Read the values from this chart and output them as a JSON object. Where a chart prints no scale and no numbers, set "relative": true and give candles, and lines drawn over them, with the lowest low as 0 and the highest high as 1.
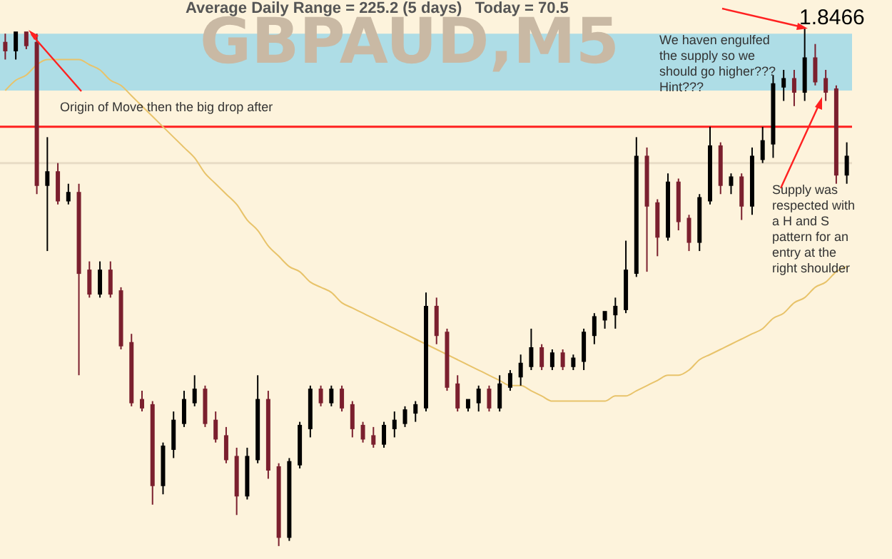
{
  "chart_data": {
    "type": "candlestick",
    "title": "Average Daily Range = 225.2 (5 days)   Today = 70.5",
    "subtitle": "GBPAUD,M5",
    "relative": true,
    "categories": [
      null,
      null,
      null,
      null,
      null,
      null,
      null,
      null,
      null,
      null,
      null,
      null,
      null,
      null,
      null,
      null,
      null,
      null,
      null,
      null,
      null,
      null,
      null,
      null,
      null,
      null,
      null,
      null,
      null,
      null,
      null,
      null,
      null,
      null,
      null,
      null,
      null,
      null,
      null,
      null,
      null,
      null,
      null,
      null,
      null,
      null,
      null,
      null,
      null,
      null,
      null,
      null,
      null,
      null,
      null,
      null,
      null,
      null,
      null,
      null,
      null,
      null,
      null,
      null,
      null,
      null,
      null,
      null,
      null,
      null,
      null,
      null,
      null,
      null,
      null,
      null,
      null,
      null,
      null,
      null,
      null
    ],
    "ohlc": [
      [
        0.97,
        0.99,
        0.94,
        0.96
      ],
      [
        0.96,
        0.99,
        0.94,
        0.99
      ],
      [
        0.99,
        0.99,
        0.96,
        0.97
      ],
      [
        0.97,
        0.99,
        0.68,
        0.7
      ],
      [
        0.7,
        0.79,
        0.57,
        0.72
      ],
      [
        0.72,
        0.74,
        0.66,
        0.67
      ],
      [
        0.67,
        0.7,
        0.66,
        0.68
      ],
      [
        0.68,
        0.7,
        0.33,
        0.53
      ],
      [
        0.53,
        0.55,
        0.48,
        0.49
      ],
      [
        0.49,
        0.55,
        0.48,
        0.53
      ],
      [
        0.53,
        0.55,
        0.48,
        0.49
      ],
      [
        0.49,
        0.5,
        0.38,
        0.39
      ],
      [
        0.39,
        0.41,
        0.27,
        0.28
      ],
      [
        0.28,
        0.3,
        0.26,
        0.27
      ],
      [
        0.27,
        0.28,
        0.08,
        0.12
      ],
      [
        0.12,
        0.2,
        0.1,
        0.19
      ],
      [
        0.19,
        0.26,
        0.17,
        0.24
      ],
      [
        0.24,
        0.3,
        0.23,
        0.28
      ],
      [
        0.28,
        0.33,
        0.27,
        0.3
      ],
      [
        0.3,
        0.31,
        0.23,
        0.24
      ],
      [
        0.24,
        0.26,
        0.2,
        0.21
      ],
      [
        0.21,
        0.23,
        0.16,
        0.17
      ],
      [
        0.17,
        0.19,
        0.06,
        0.1
      ],
      [
        0.1,
        0.19,
        0.09,
        0.17
      ],
      [
        0.17,
        0.33,
        0.16,
        0.28
      ],
      [
        0.28,
        0.3,
        0.13,
        0.15
      ],
      [
        0.15,
        0.16,
        0,
        0.02
      ],
      [
        0.02,
        0.17,
        0.01,
        0.16
      ],
      [
        0.16,
        0.24,
        0.15,
        0.23
      ],
      [
        0.23,
        0.31,
        0.21,
        0.3
      ],
      [
        0.3,
        0.31,
        0.27,
        0.28
      ],
      [
        0.28,
        0.31,
        0.27,
        0.3
      ],
      [
        0.3,
        0.31,
        0.26,
        0.27
      ],
      [
        0.27,
        0.28,
        0.21,
        0.23
      ],
      [
        0.23,
        0.24,
        0.2,
        0.21
      ],
      [
        0.21,
        0.23,
        0.19,
        0.2
      ],
      [
        0.2,
        0.24,
        0.19,
        0.23
      ],
      [
        0.23,
        0.26,
        0.21,
        0.24
      ],
      [
        0.24,
        0.27,
        0.23,
        0.26
      ],
      [
        0.26,
        0.28,
        0.24,
        0.27
      ],
      [
        0.27,
        0.49,
        0.26,
        0.46
      ],
      [
        0.46,
        0.48,
        0.39,
        0.41
      ],
      [
        0.41,
        0.42,
        0.3,
        0.31
      ],
      [
        0.31,
        0.33,
        0.26,
        0.27
      ],
      [
        0.27,
        0.28,
        0.26,
        0.28
      ],
      [
        0.28,
        0.31,
        0.26,
        0.3
      ],
      [
        0.3,
        0.31,
        0.26,
        0.27
      ],
      [
        0.27,
        0.33,
        0.26,
        0.31
      ],
      [
        0.31,
        0.34,
        0.3,
        0.33
      ],
      [
        0.33,
        0.37,
        0.31,
        0.35
      ],
      [
        0.35,
        0.42,
        0.34,
        0.38
      ],
      [
        0.38,
        0.39,
        0.34,
        0.35
      ],
      [
        0.35,
        0.38,
        0.34,
        0.37
      ],
      [
        0.37,
        0.38,
        0.34,
        0.35
      ],
      [
        0.35,
        0.37,
        0.34,
        0.36
      ],
      [
        0.36,
        0.42,
        0.34,
        0.41
      ],
      [
        0.41,
        0.45,
        0.39,
        0.44
      ],
      [
        0.44,
        0.45,
        0.42,
        0.45
      ],
      [
        0.45,
        0.48,
        0.42,
        0.46
      ],
      [
        0.46,
        0.59,
        0.45,
        0.53
      ],
      [
        0.53,
        0.79,
        0.52,
        0.75
      ],
      [
        0.75,
        0.77,
        0.53,
        0.66
      ],
      [
        0.66,
        0.67,
        0.56,
        0.6
      ],
      [
        0.6,
        0.72,
        0.59,
        0.7
      ],
      [
        0.7,
        0.71,
        0.61,
        0.63
      ],
      [
        0.63,
        0.64,
        0.57,
        0.59
      ],
      [
        0.59,
        0.68,
        0.57,
        0.67
      ],
      [
        0.67,
        0.81,
        0.66,
        0.77
      ],
      [
        0.77,
        0.78,
        0.68,
        0.7
      ],
      [
        0.7,
        0.72,
        0.68,
        0.71
      ],
      [
        0.71,
        0.72,
        0.63,
        0.66
      ],
      [
        0.66,
        0.77,
        0.64,
        0.75
      ],
      [
        0.75,
        0.81,
        0.74,
        0.78
      ],
      [
        0.78,
        0.91,
        0.75,
        0.89
      ],
      [
        0.89,
        0.92,
        0.86,
        0.9
      ],
      [
        0.9,
        0.92,
        0.85,
        0.88
      ],
      [
        0.88,
        1,
        0.86,
        0.94
      ],
      [
        0.94,
        0.97,
        0.89,
        0.9
      ],
      [
        0.9,
        0.92,
        0.86,
        0.88
      ],
      [
        0.88,
        0.89,
        0.7,
        0.72
      ],
      [
        0.72,
        0.78,
        0.7,
        0.75
      ]
    ],
    "colors": [
      "#7b1f2e",
      "#000000",
      "#7b1f2e",
      "#7b1f2e",
      "#000000",
      "#7b1f2e",
      "#000000",
      "#7b1f2e",
      "#7b1f2e",
      "#000000",
      "#7b1f2e",
      "#7b1f2e",
      "#7b1f2e",
      "#7b1f2e",
      "#7b1f2e",
      "#000000",
      "#000000",
      "#000000",
      "#000000",
      "#7b1f2e",
      "#7b1f2e",
      "#7b1f2e",
      "#7b1f2e",
      "#000000",
      "#000000",
      "#7b1f2e",
      "#7b1f2e",
      "#000000",
      "#000000",
      "#000000",
      "#7b1f2e",
      "#000000",
      "#7b1f2e",
      "#7b1f2e",
      "#7b1f2e",
      "#7b1f2e",
      "#000000",
      "#000000",
      "#000000",
      "#000000",
      "#000000",
      "#7b1f2e",
      "#7b1f2e",
      "#7b1f2e",
      "#000000",
      "#000000",
      "#7b1f2e",
      "#000000",
      "#000000",
      "#000000",
      "#000000",
      "#7b1f2e",
      "#000000",
      "#7b1f2e",
      "#000000",
      "#000000",
      "#000000",
      "#000000",
      "#000000",
      "#000000",
      "#000000",
      "#7b1f2e",
      "#7b1f2e",
      "#000000",
      "#7b1f2e",
      "#7b1f2e",
      "#000000",
      "#000000",
      "#7b1f2e",
      "#000000",
      "#7b1f2e",
      "#000000",
      "#000000",
      "#000000",
      "#000000",
      "#7b1f2e",
      "#000000",
      "#7b1f2e",
      "#7b1f2e",
      "#7b1f2e",
      "#000000"
    ],
    "series": [
      {
        "type": "line",
        "color": "#e8c36a",
        "values": [
          0.88,
          0.9,
          0.91,
          0.93,
          0.94,
          0.94,
          0.94,
          0.94,
          0.93,
          0.92,
          0.9,
          0.89,
          0.87,
          0.85,
          0.83,
          0.81,
          0.79,
          0.77,
          0.75,
          0.72,
          0.7,
          0.68,
          0.66,
          0.63,
          0.61,
          0.58,
          0.56,
          0.54,
          0.53,
          0.51,
          0.5,
          0.49,
          0.47,
          0.46,
          0.45,
          0.44,
          0.43,
          0.42,
          0.41,
          0.4,
          0.39,
          0.38,
          0.37,
          0.36,
          0.35,
          0.34,
          0.33,
          0.32,
          0.31,
          0.31,
          0.3,
          0.29,
          0.28,
          0.28,
          0.28,
          0.28,
          0.28,
          0.28,
          0.29,
          0.29,
          0.3,
          0.31,
          0.32,
          0.33,
          0.33,
          0.34,
          0.36,
          0.37,
          0.38,
          0.39,
          0.4,
          0.41,
          0.42,
          0.44,
          0.45,
          0.47,
          0.48,
          0.5,
          0.51,
          0.53,
          0.54
        ]
      }
    ],
    "bands": [
      {
        "axis": "y",
        "from": 0.88,
        "to": 0.99,
        "color": "#aedde6"
      }
    ],
    "ref_lines": [
      {
        "axis": "y",
        "value": 0.81,
        "color": "#ff2020"
      },
      {
        "axis": "y",
        "value": 0.74,
        "color": "#e8dcc6"
      }
    ],
    "annotations": [
      "Origin of Move then the big drop after",
      "We haven engulfed the supply so we should go higher??? Hint???",
      "1.8466",
      "Supply was respected with a H and S pattern for an entry at the right shoulder"
    ]
  }
}
